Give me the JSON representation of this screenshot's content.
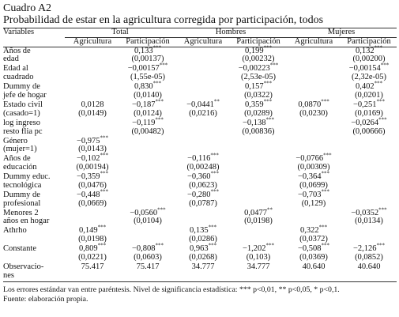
{
  "header": {
    "label": "Cuadro A2",
    "title": "Probabilidad de estar en la agricultura corregida por participación, todos"
  },
  "table": {
    "corner": "Variables",
    "groups": [
      "Total",
      "Hombres",
      "Mujeres"
    ],
    "subheaders": [
      "Agricultura",
      "Participación",
      "Agricultura",
      "Participación",
      "Agricultura",
      "Participación"
    ],
    "rows": [
      {
        "label": [
          "Años de",
          "edad"
        ],
        "cells": [
          null,
          {
            "v": "0,133",
            "s": "***",
            "se": "(0,00137)"
          },
          null,
          {
            "v": "0,199",
            "s": "***",
            "se": "(0,00232)"
          },
          null,
          {
            "v": "0,132",
            "s": "***",
            "se": "(0,00200)"
          }
        ]
      },
      {
        "label": [
          "Edad al",
          "cuadrado"
        ],
        "cells": [
          null,
          {
            "v": "−0,00157",
            "s": "***",
            "se": "(1,55e-05)"
          },
          null,
          {
            "v": "−0,00223",
            "s": "***",
            "se": "(2,53e-05)"
          },
          null,
          {
            "v": "−0,00154",
            "s": "***",
            "se": "(2,32e-05)"
          }
        ]
      },
      {
        "label": [
          "Dummy de",
          "jefe de hogar"
        ],
        "cells": [
          null,
          {
            "v": "0,830",
            "s": "***",
            "se": "(0,0140)"
          },
          null,
          {
            "v": "0,157",
            "s": "***",
            "se": "(0,0322)"
          },
          null,
          {
            "v": "0,402",
            "s": "***",
            "se": "(0,0201)"
          }
        ]
      },
      {
        "label": [
          "Estado civil",
          "(casado=1)"
        ],
        "cells": [
          {
            "v": "0,0128",
            "se": "(0,0149)"
          },
          {
            "v": "−0,187",
            "s": "***",
            "se": "(0,0124)"
          },
          {
            "v": "−0,0441",
            "s": "**",
            "se": "(0,0216)"
          },
          {
            "v": "0,359",
            "s": "***",
            "se": "(0,0289)"
          },
          {
            "v": "0,0870",
            "s": "***",
            "se": "(0,0230)"
          },
          {
            "v": "−0,251",
            "s": "***",
            "se": "(0,0169)"
          }
        ]
      },
      {
        "label": [
          "log ingreso",
          "resto flia pc"
        ],
        "cells": [
          null,
          {
            "v": "−0,119",
            "s": "***",
            "se": "(0,00482)"
          },
          null,
          {
            "v": "−0,138",
            "s": "***",
            "se": "(0,00836)"
          },
          null,
          {
            "v": "−0,0264",
            "s": "***",
            "se": "(0,00666)"
          }
        ]
      },
      {
        "label": [
          "Género",
          "(mujer=1)"
        ],
        "cells": [
          {
            "v": "−0,975",
            "s": "***",
            "se": "(0,0143)"
          },
          null,
          null,
          null,
          null,
          null
        ]
      },
      {
        "label": [
          "Años de",
          "educación"
        ],
        "cells": [
          {
            "v": "−0,102",
            "s": "***",
            "se": "(0,00194)"
          },
          null,
          {
            "v": "−0,116",
            "s": "***",
            "se": "(0,00248)"
          },
          null,
          {
            "v": "−0,0766",
            "s": "***",
            "se": "(0,00309)"
          },
          null
        ]
      },
      {
        "label": [
          "Dummy educ.",
          "tecnológica"
        ],
        "cells": [
          {
            "v": "−0,359",
            "s": "***",
            "se": "(0,0476)"
          },
          null,
          {
            "v": "−0,360",
            "s": "***",
            "se": "(0,0623)"
          },
          null,
          {
            "v": "−0,364",
            "s": "***",
            "se": "(0,0699)"
          },
          null
        ]
      },
      {
        "label": [
          "Dummy de",
          "profesional"
        ],
        "cells": [
          {
            "v": "−0,448",
            "s": "***",
            "se": "(0,0669)"
          },
          null,
          {
            "v": "−0,280",
            "s": "***",
            "se": "(0,0787)"
          },
          null,
          {
            "v": "−0,703",
            "s": "***",
            "se": "(0,129)"
          },
          null
        ]
      },
      {
        "label": [
          "Menores 2",
          "años en hogar"
        ],
        "cells": [
          null,
          {
            "v": "−0,0560",
            "s": "***",
            "se": "(0,0104)"
          },
          null,
          {
            "v": "0,0477",
            "s": "**",
            "se": "(0,0198)"
          },
          null,
          {
            "v": "−0,0352",
            "s": "***",
            "se": "(0,0134)"
          }
        ]
      },
      {
        "label": [
          "Athrho"
        ],
        "cells": [
          {
            "v": "0,149",
            "s": "***",
            "se": "(0,0198)"
          },
          null,
          {
            "v": "0,135",
            "s": "***",
            "se": "(0,0286)"
          },
          null,
          {
            "v": "0,322",
            "s": "***",
            "se": "(0,0372)"
          },
          null
        ]
      },
      {
        "label": [
          "Constante"
        ],
        "cells": [
          {
            "v": "0,809",
            "s": "***",
            "se": "(0,0221)"
          },
          {
            "v": "−0,808",
            "s": "***",
            "se": "(0,0603)"
          },
          {
            "v": "0,963",
            "s": "***",
            "se": "(0,0268)"
          },
          {
            "v": "−1,202",
            "s": "***",
            "se": "(0,103)"
          },
          {
            "v": "−0,508",
            "s": "***",
            "se": "(0,0369)"
          },
          {
            "v": "−2,126",
            "s": "***",
            "se": "(0,0852)"
          }
        ]
      },
      {
        "label": [
          "Observacio-",
          "nes"
        ],
        "cells": [
          {
            "v": "75.417"
          },
          {
            "v": "75.417"
          },
          {
            "v": "34.777"
          },
          {
            "v": "34.777"
          },
          {
            "v": "40.640"
          },
          {
            "v": "40.640"
          }
        ]
      }
    ]
  },
  "notes": [
    "Los errores estándar van entre paréntesis. Nivel de significancia estadística: *** p<0,01, ** p<0,05, * p<0,1.",
    "Fuente: elaboración propia."
  ]
}
